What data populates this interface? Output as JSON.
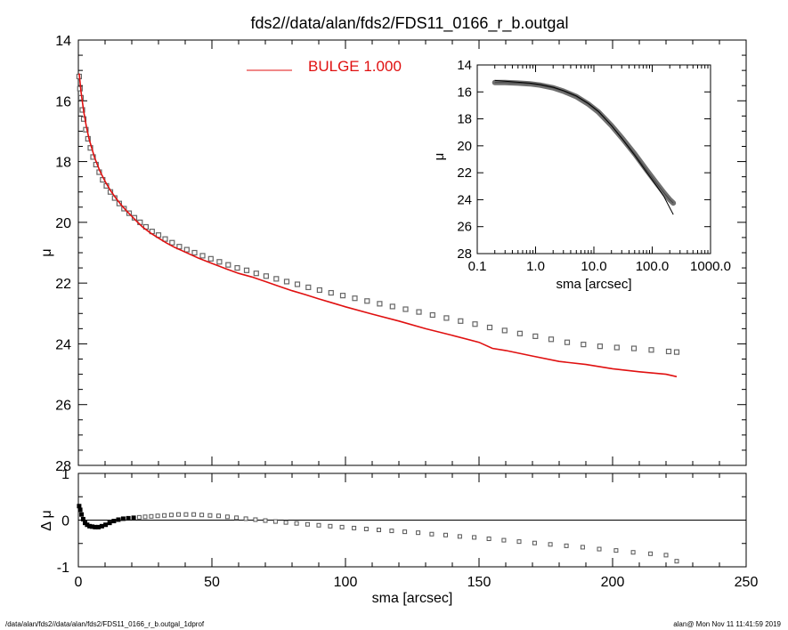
{
  "chart_data": [
    {
      "type": "scatter",
      "title": "fds2//data/alan/fds2/FDS11_0166_r_b.outgal",
      "xlabel": "",
      "ylabel": "μ",
      "xlim": [
        0,
        250
      ],
      "ylim": [
        28,
        14
      ],
      "y_inverted": true,
      "x_ticks": [
        0,
        50,
        100,
        150,
        200,
        250
      ],
      "y_ticks": [
        14,
        16,
        18,
        20,
        22,
        24,
        26,
        28
      ],
      "legend": {
        "label": "BULGE  1.000",
        "color": "#e01010",
        "placement": "top-center"
      },
      "series": [
        {
          "name": "data",
          "style": "squares",
          "color": "#666666",
          "x": [
            0.3,
            0.6,
            1.0,
            1.5,
            2.0,
            2.8,
            3.6,
            4.5,
            5.5,
            6.6,
            7.8,
            9.1,
            10.5,
            12.0,
            13.6,
            15.3,
            17.1,
            19.0,
            21.0,
            23.1,
            25.3,
            27.6,
            30.0,
            32.5,
            35.1,
            37.8,
            40.6,
            43.5,
            46.5,
            49.6,
            52.8,
            56.1,
            59.5,
            63.0,
            66.6,
            70.3,
            74.1,
            78.0,
            82.0,
            86.1,
            90.3,
            94.6,
            99.0,
            103.5,
            108.1,
            112.8,
            117.6,
            122.5,
            127.5,
            132.6,
            137.8,
            143.1,
            148.5,
            154.0,
            159.6,
            165.3,
            171.1,
            177.0,
            183.0,
            189.1,
            195.3,
            201.6,
            208.0,
            214.5,
            221.0,
            224.0
          ],
          "y": [
            15.2,
            15.6,
            15.9,
            16.3,
            16.6,
            16.95,
            17.25,
            17.55,
            17.85,
            18.1,
            18.35,
            18.6,
            18.8,
            19.0,
            19.2,
            19.38,
            19.55,
            19.7,
            19.85,
            20.0,
            20.15,
            20.3,
            20.42,
            20.55,
            20.67,
            20.8,
            20.9,
            21.0,
            21.1,
            21.2,
            21.3,
            21.4,
            21.5,
            21.58,
            21.68,
            21.77,
            21.86,
            21.95,
            22.04,
            22.14,
            22.23,
            22.32,
            22.41,
            22.5,
            22.59,
            22.68,
            22.77,
            22.86,
            22.95,
            23.05,
            23.15,
            23.25,
            23.35,
            23.46,
            23.56,
            23.66,
            23.75,
            23.85,
            23.95,
            24.02,
            24.08,
            24.12,
            24.15,
            24.2,
            24.25,
            24.27
          ]
        },
        {
          "name": "BULGE  1.000",
          "style": "line",
          "color": "#e01010",
          "x": [
            0.3,
            1,
            2,
            3,
            4,
            5,
            6,
            8,
            10,
            12,
            14,
            16,
            18,
            20,
            22,
            24,
            27,
            30,
            33,
            36,
            40,
            45,
            50,
            55,
            60,
            65,
            70,
            75,
            80,
            85,
            90,
            95,
            100,
            110,
            120,
            130,
            140,
            150,
            155,
            160,
            170,
            180,
            190,
            200,
            210,
            220,
            224
          ],
          "y": [
            15.1,
            15.7,
            16.35,
            16.85,
            17.25,
            17.55,
            17.85,
            18.3,
            18.65,
            18.95,
            19.2,
            19.42,
            19.62,
            19.8,
            19.98,
            20.15,
            20.35,
            20.52,
            20.68,
            20.82,
            20.98,
            21.18,
            21.35,
            21.52,
            21.68,
            21.8,
            21.95,
            22.1,
            22.25,
            22.38,
            22.52,
            22.65,
            22.78,
            23.02,
            23.25,
            23.5,
            23.72,
            23.95,
            24.15,
            24.22,
            24.4,
            24.58,
            24.68,
            24.82,
            24.92,
            25.0,
            25.08
          ]
        }
      ]
    },
    {
      "type": "line",
      "title": "",
      "xlabel": "sma [arcsec]",
      "ylabel": "μ",
      "x_scale": "log",
      "xlim": [
        0.1,
        1000
      ],
      "ylim": [
        28,
        14
      ],
      "y_inverted": true,
      "x_ticks": [
        0.1,
        1.0,
        10.0,
        100.0,
        1000.0
      ],
      "x_tick_labels": [
        "0.1",
        "1.0",
        "10.0",
        "100.0",
        "1000.0"
      ],
      "y_ticks": [
        14,
        16,
        18,
        20,
        22,
        24,
        26,
        28
      ],
      "series": [
        {
          "name": "data-band",
          "color": "#707070",
          "x": [
            0.2,
            0.3,
            0.5,
            0.8,
            1.2,
            2,
            3,
            5,
            8,
            12,
            20,
            30,
            50,
            80,
            120,
            160,
            200,
            230
          ],
          "y": [
            15.3,
            15.3,
            15.35,
            15.4,
            15.5,
            15.7,
            15.95,
            16.35,
            16.9,
            17.5,
            18.5,
            19.4,
            20.6,
            21.8,
            22.8,
            23.5,
            24.0,
            24.25
          ]
        },
        {
          "name": "model",
          "color": "#000000",
          "x": [
            0.2,
            0.3,
            0.5,
            0.8,
            1.2,
            2,
            3,
            5,
            8,
            12,
            20,
            30,
            50,
            80,
            120,
            160,
            200,
            230
          ],
          "y": [
            15.15,
            15.2,
            15.28,
            15.35,
            15.45,
            15.65,
            15.9,
            16.3,
            16.85,
            17.45,
            18.5,
            19.45,
            20.7,
            21.95,
            23.0,
            23.8,
            24.6,
            25.1
          ]
        }
      ]
    },
    {
      "type": "scatter",
      "title": "",
      "xlabel": "sma [arcsec]",
      "ylabel": "Δ μ",
      "xlim": [
        0,
        250
      ],
      "ylim": [
        -1,
        1
      ],
      "x_ticks": [
        0,
        50,
        100,
        150,
        200,
        250
      ],
      "y_ticks": [
        -1,
        0,
        1
      ],
      "series": [
        {
          "name": "residual",
          "style": "squares",
          "color": "#555555",
          "x": [
            0.3,
            0.7,
            1.2,
            1.8,
            2.5,
            3.3,
            4.2,
            5.2,
            6.3,
            7.5,
            8.8,
            10.2,
            11.7,
            13.3,
            15.0,
            16.8,
            18.7,
            20.7,
            22.8,
            25.0,
            27.3,
            29.7,
            32.2,
            34.8,
            37.5,
            40.3,
            43.2,
            46.2,
            49.3,
            52.5,
            55.8,
            59.2,
            62.7,
            66.3,
            70.0,
            73.8,
            77.7,
            81.7,
            85.8,
            90.0,
            94.3,
            98.7,
            103.2,
            107.8,
            112.5,
            117.3,
            122.2,
            127.2,
            132.3,
            137.5,
            142.8,
            148.2,
            153.7,
            159.3,
            165.0,
            170.8,
            176.7,
            182.7,
            188.8,
            195.0,
            201.3,
            207.7,
            214.2,
            220.0,
            224.0
          ],
          "y": [
            0.3,
            0.22,
            0.12,
            0.02,
            -0.06,
            -0.1,
            -0.13,
            -0.14,
            -0.15,
            -0.15,
            -0.13,
            -0.1,
            -0.06,
            -0.02,
            0.01,
            0.03,
            0.04,
            0.05,
            0.06,
            0.07,
            0.08,
            0.09,
            0.1,
            0.11,
            0.12,
            0.12,
            0.12,
            0.11,
            0.1,
            0.09,
            0.07,
            0.05,
            0.03,
            0.01,
            -0.01,
            -0.03,
            -0.05,
            -0.07,
            -0.09,
            -0.11,
            -0.13,
            -0.15,
            -0.17,
            -0.19,
            -0.21,
            -0.23,
            -0.25,
            -0.27,
            -0.3,
            -0.32,
            -0.35,
            -0.37,
            -0.4,
            -0.43,
            -0.46,
            -0.49,
            -0.52,
            -0.55,
            -0.58,
            -0.62,
            -0.65,
            -0.69,
            -0.72,
            -0.75,
            -0.88
          ]
        }
      ]
    }
  ],
  "footer": {
    "left": "/data/alan/fds2//data/alan/fds2/FDS11_0166_r_b.outgal_1dprof",
    "right": "alan@  Mon Nov 11 11:41:59 2019"
  }
}
